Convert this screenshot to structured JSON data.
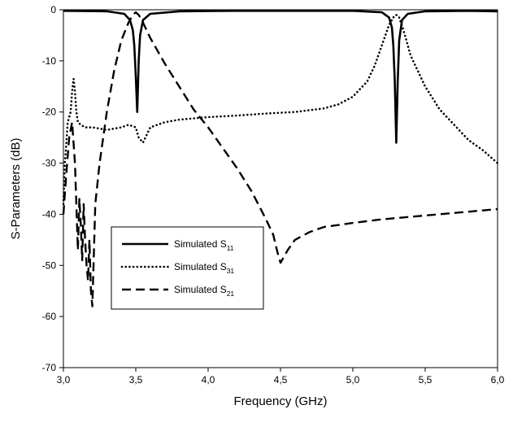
{
  "chart_data": {
    "type": "line",
    "title": "",
    "xlabel": "Frequency (GHz)",
    "ylabel": "S-Parameters (dB)",
    "xlim": [
      3.0,
      6.0
    ],
    "ylim": [
      -70,
      0
    ],
    "x_ticks": [
      "3,0",
      "3,5",
      "4,0",
      "4,5",
      "5,0",
      "5,5",
      "6,0"
    ],
    "x_tick_values": [
      3.0,
      3.5,
      4.0,
      4.5,
      5.0,
      5.5,
      6.0
    ],
    "y_ticks": [
      "0",
      "-10",
      "-20",
      "-30",
      "-40",
      "-50",
      "-60",
      "-70"
    ],
    "y_tick_values": [
      0,
      -10,
      -20,
      -30,
      -40,
      -50,
      -60,
      -70
    ],
    "grid": false,
    "legend_position": "lower-left",
    "series": [
      {
        "name": "Simulated S",
        "subscript": "11",
        "style": "solid",
        "x": [
          3.0,
          3.3,
          3.42,
          3.46,
          3.48,
          3.49,
          3.5,
          3.51,
          3.52,
          3.53,
          3.55,
          3.6,
          3.8,
          4.2,
          4.6,
          5.0,
          5.2,
          5.25,
          5.27,
          5.28,
          5.29,
          5.3,
          5.31,
          5.32,
          5.34,
          5.38,
          5.5,
          5.8,
          6.0
        ],
        "y": [
          -0.2,
          -0.3,
          -0.8,
          -2,
          -4,
          -7,
          -13,
          -20,
          -10,
          -5,
          -2,
          -0.8,
          -0.3,
          -0.2,
          -0.2,
          -0.2,
          -0.5,
          -1.5,
          -3.5,
          -7,
          -14,
          -26,
          -14,
          -6,
          -2,
          -0.8,
          -0.3,
          -0.2,
          -0.3
        ]
      },
      {
        "name": "Simulated S",
        "subscript": "31",
        "style": "dotted",
        "x": [
          3.0,
          3.01,
          3.02,
          3.03,
          3.05,
          3.06,
          3.07,
          3.08,
          3.09,
          3.1,
          3.12,
          3.15,
          3.2,
          3.3,
          3.4,
          3.45,
          3.5,
          3.52,
          3.55,
          3.6,
          3.7,
          3.8,
          4.0,
          4.2,
          4.4,
          4.6,
          4.8,
          4.9,
          5.0,
          5.1,
          5.15,
          5.2,
          5.25,
          5.28,
          5.3,
          5.32,
          5.35,
          5.4,
          5.5,
          5.6,
          5.7,
          5.8,
          5.9,
          6.0
        ],
        "y": [
          -38,
          -30,
          -26,
          -22,
          -20,
          -16,
          -13.5,
          -16,
          -20,
          -22,
          -22.5,
          -23,
          -23,
          -23.5,
          -23,
          -22.5,
          -23,
          -25,
          -26,
          -23,
          -22,
          -21.5,
          -21,
          -20.7,
          -20.3,
          -20,
          -19.3,
          -18.5,
          -17,
          -14,
          -11,
          -7,
          -3,
          -1.5,
          -1,
          -1.5,
          -4,
          -9,
          -15,
          -19.5,
          -22.5,
          -25.5,
          -27.5,
          -30
        ]
      },
      {
        "name": "Simulated S",
        "subscript": "21",
        "style": "dashed",
        "x": [
          3.0,
          3.02,
          3.04,
          3.06,
          3.08,
          3.1,
          3.11,
          3.12,
          3.13,
          3.14,
          3.15,
          3.16,
          3.17,
          3.18,
          3.19,
          3.2,
          3.22,
          3.25,
          3.3,
          3.35,
          3.4,
          3.45,
          3.48,
          3.5,
          3.52,
          3.55,
          3.6,
          3.7,
          3.8,
          3.9,
          4.0,
          4.1,
          4.2,
          4.3,
          4.4,
          4.45,
          4.48,
          4.5,
          4.52,
          4.55,
          4.6,
          4.7,
          4.8,
          5.0,
          5.2,
          5.4,
          5.6,
          5.8,
          6.0
        ],
        "y": [
          -40,
          -32,
          -25,
          -22,
          -30,
          -47,
          -37,
          -42,
          -49,
          -38,
          -45,
          -50,
          -53,
          -45,
          -55,
          -58,
          -38,
          -30,
          -20,
          -12,
          -6,
          -2.5,
          -1,
          -0.5,
          -1,
          -2.5,
          -5.5,
          -10.5,
          -15,
          -19.5,
          -23,
          -27,
          -31,
          -35.5,
          -41,
          -44,
          -47.5,
          -49.5,
          -48.5,
          -47,
          -45,
          -43.5,
          -42.5,
          -41.7,
          -41,
          -40.5,
          -40,
          -39.5,
          -39
        ]
      }
    ]
  }
}
